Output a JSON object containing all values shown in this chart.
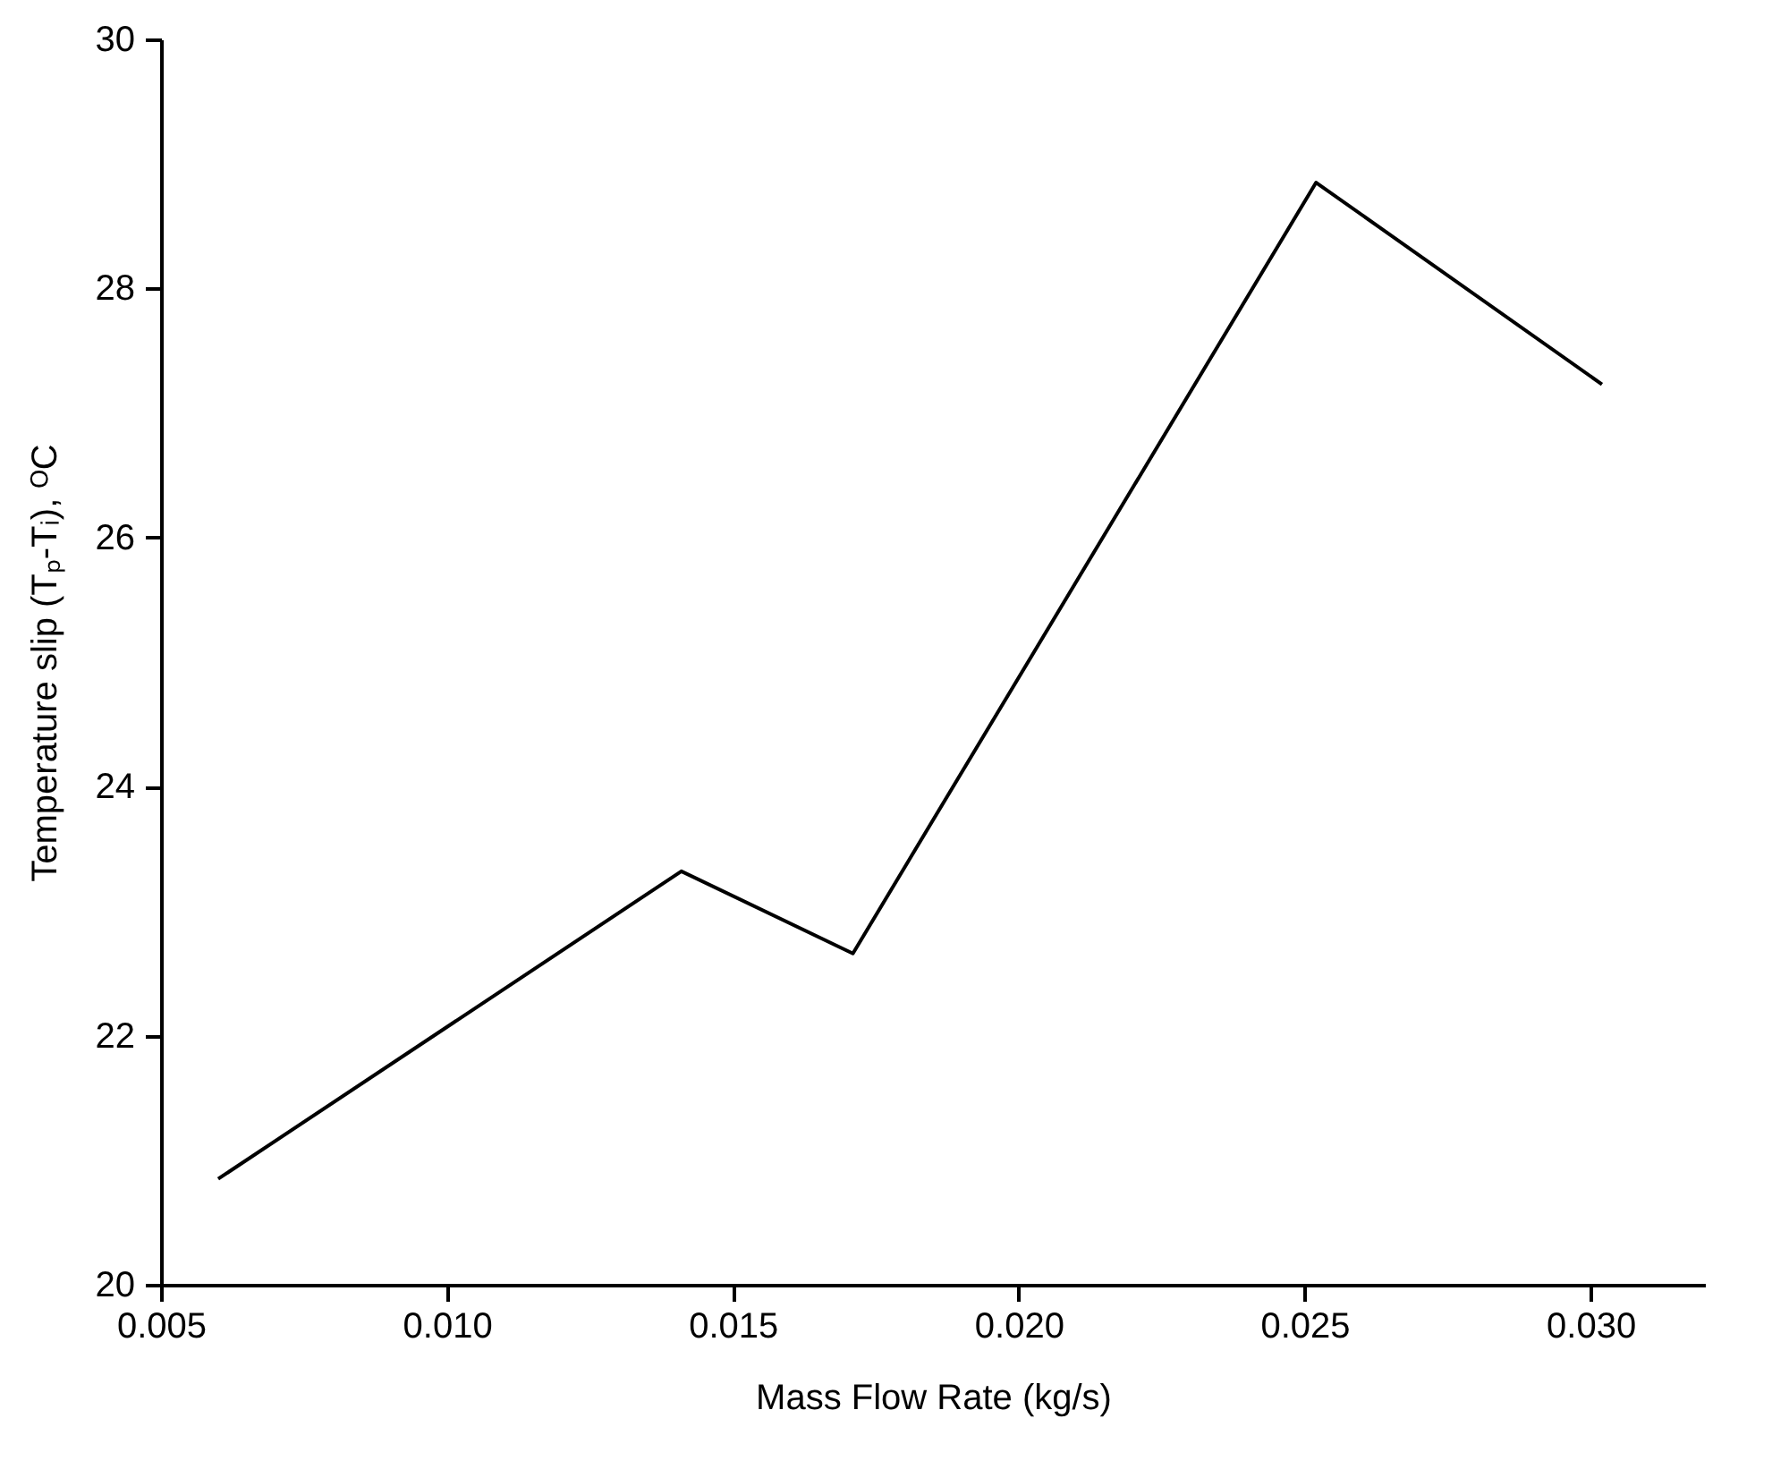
{
  "chart_data": {
    "type": "line",
    "xlabel": "Mass Flow Rate (kg/s)",
    "ylabel": "Temperature slip (Tₚ-Tᵢ), ᴼC",
    "x": [
      0.006,
      0.0141,
      0.0171,
      0.0252,
      0.0302
    ],
    "series": [
      {
        "color": "#000000",
        "values": [
          20.85,
          23.32,
          22.66,
          28.85,
          27.23
        ]
      }
    ],
    "xlim": [
      0.005,
      0.032
    ],
    "xticks": [
      0.005,
      {
        "value": 0.01,
        "label": "0.010"
      },
      0.015,
      {
        "value": 0.02,
        "label": "0.020"
      },
      0.025,
      {
        "value": 0.03,
        "label": "0.030"
      }
    ],
    "ylim": [
      20,
      30
    ],
    "yticks": [
      20,
      22,
      24,
      26,
      28,
      30
    ],
    "grid": false,
    "marker": "none",
    "line_style": "solid"
  }
}
